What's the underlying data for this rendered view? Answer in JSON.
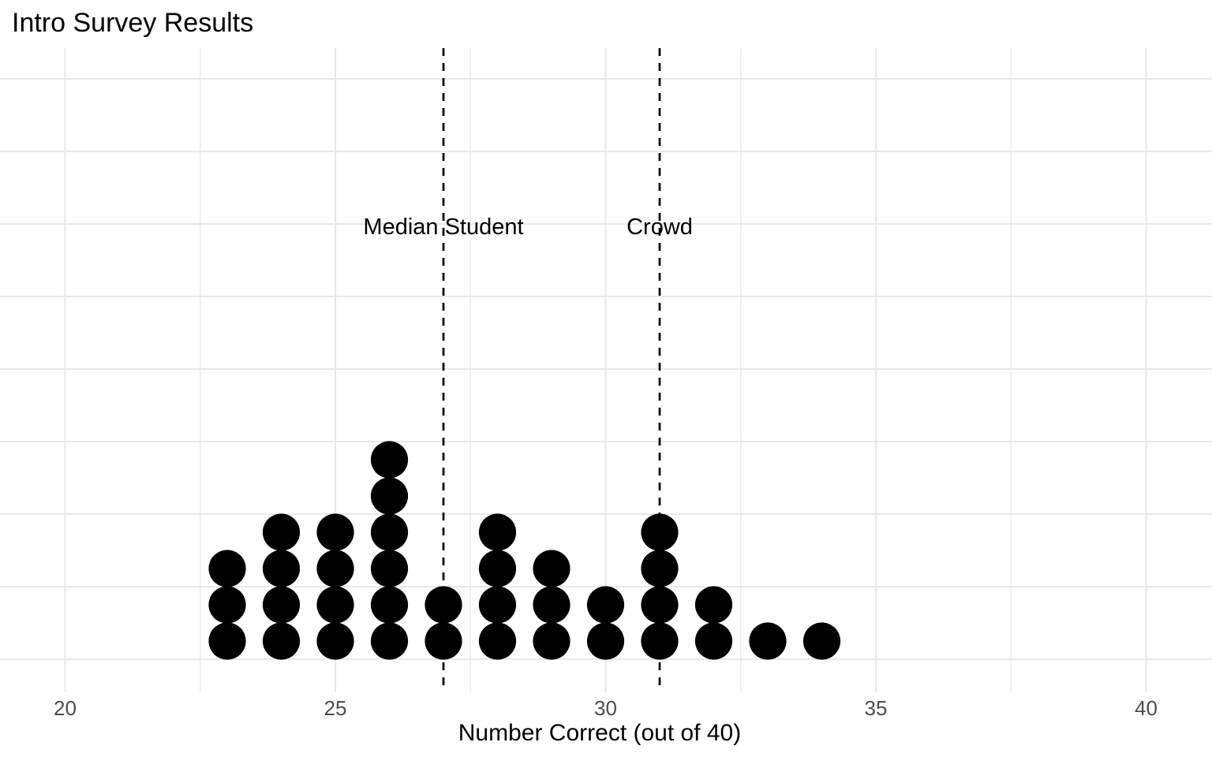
{
  "chart_data": {
    "type": "dotplot",
    "title": "Intro Survey Results",
    "xlabel": "Number Correct (out of 40)",
    "ylabel": "",
    "x_ticks": [
      20,
      25,
      30,
      35,
      40
    ],
    "x_minor_ticks": [
      22.5,
      27.5,
      32.5,
      37.5
    ],
    "xlim": [
      18.8,
      41.2
    ],
    "y_gridline_counts": [
      0,
      2,
      4,
      6,
      8,
      10,
      12,
      14,
      16
    ],
    "grid": "on",
    "legend": "none",
    "stacks": [
      {
        "x": 23,
        "count": 3
      },
      {
        "x": 24,
        "count": 4
      },
      {
        "x": 25,
        "count": 4
      },
      {
        "x": 26,
        "count": 6
      },
      {
        "x": 27,
        "count": 2
      },
      {
        "x": 28,
        "count": 4
      },
      {
        "x": 29,
        "count": 3
      },
      {
        "x": 30,
        "count": 2
      },
      {
        "x": 31,
        "count": 4
      },
      {
        "x": 32,
        "count": 2
      },
      {
        "x": 33,
        "count": 1
      },
      {
        "x": 34,
        "count": 1
      }
    ],
    "total_dots": 36,
    "annotations": [
      {
        "label": "Median Student",
        "x": 27,
        "style": "dashed-vline"
      },
      {
        "label": "Crowd",
        "x": 31,
        "style": "dashed-vline"
      }
    ],
    "colors": {
      "background": "#ffffff",
      "dot": "#000000",
      "grid_major": "#e8e8e8",
      "grid_minor": "#eeeeee",
      "tick_label": "#4d4d4d",
      "axis_title": "#000000",
      "title": "#000000",
      "reference_line": "#000000"
    }
  }
}
